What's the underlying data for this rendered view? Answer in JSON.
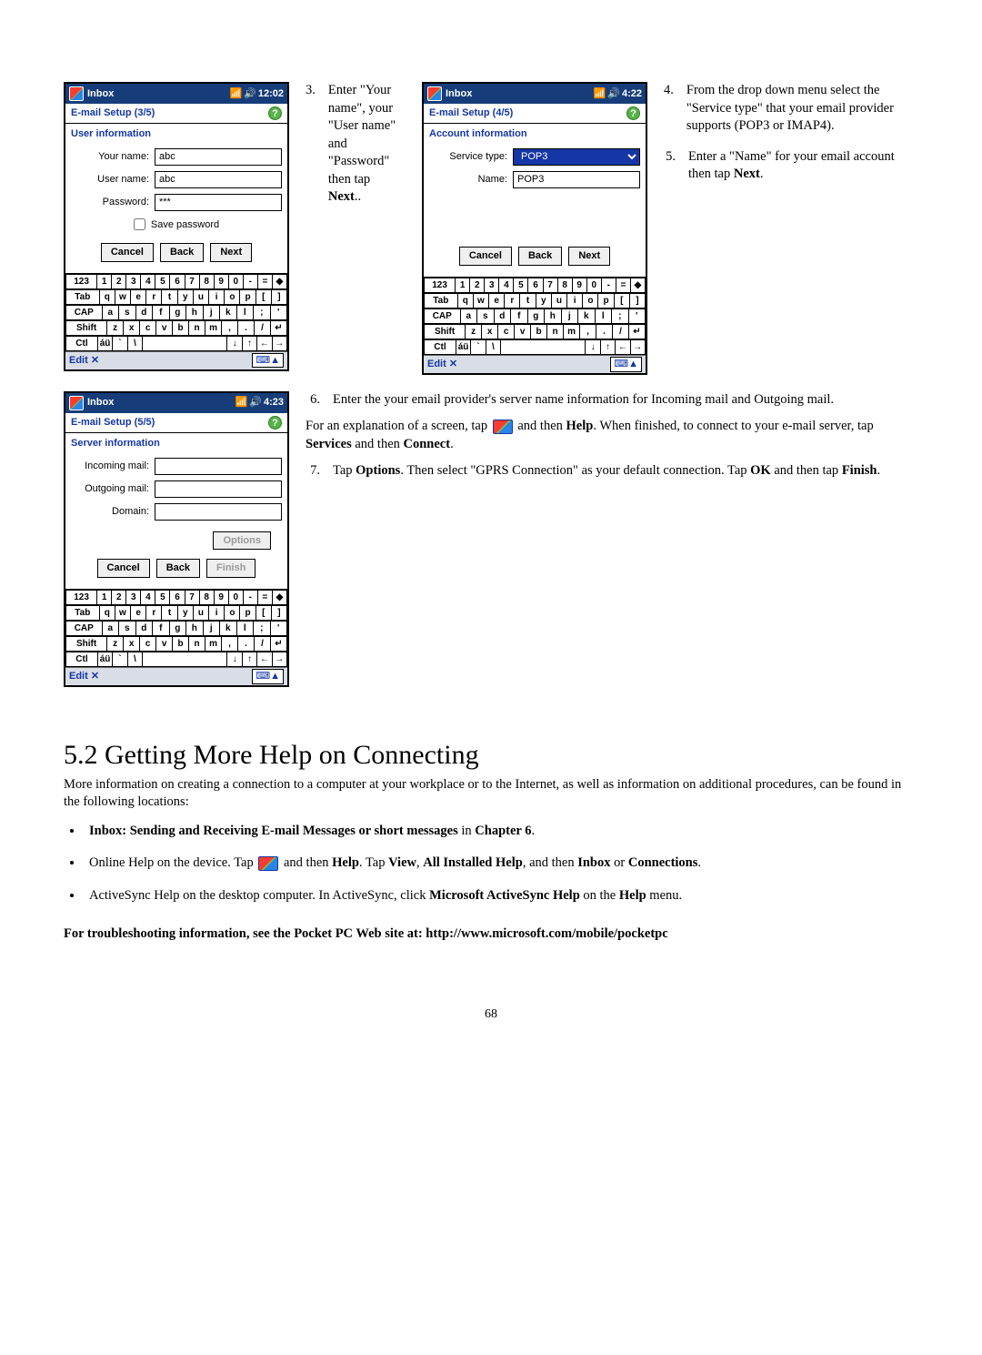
{
  "shot1": {
    "title": "Inbox",
    "time": "12:02",
    "step": "E-mail Setup (3/5)",
    "section": "User information",
    "yourname_lbl": "Your name:",
    "yourname_val": "abc",
    "username_lbl": "User name:",
    "username_val": "abc",
    "password_lbl": "Password:",
    "password_val": "***",
    "save_pw": "Save password",
    "cancel": "Cancel",
    "back": "Back",
    "next": "Next",
    "edit": "Edit ✕"
  },
  "shot2": {
    "title": "Inbox",
    "time": "4:22",
    "step": "E-mail Setup (4/5)",
    "section": "Account information",
    "svc_lbl": "Service type:",
    "svc_val": "POP3",
    "name_lbl": "Name:",
    "name_val": "POP3",
    "cancel": "Cancel",
    "back": "Back",
    "next": "Next",
    "edit": "Edit ✕"
  },
  "shot3": {
    "title": "Inbox",
    "time": "4:23",
    "step": "E-mail Setup (5/5)",
    "section": "Server information",
    "in_lbl": "Incoming mail:",
    "out_lbl": "Outgoing mail:",
    "dom_lbl": "Domain:",
    "options": "Options",
    "cancel": "Cancel",
    "back": "Back",
    "finish": "Finish",
    "edit": "Edit ✕"
  },
  "txt": {
    "s3a": "Enter \"Your name\", your \"User name\" and \"Password\" then tap ",
    "s3b": "Next",
    "s3c": "..",
    "s4a": "From the drop down menu select the \"Service type\" that your email provider supports (POP3 or IMAP4).",
    "s5a": "Enter a \"Name\" for your email account then tap ",
    "s5b": "Next",
    "s5c": ".",
    "s6": "Enter the your email provider's server name information for Incoming mail and Outgoing mail.",
    "expl_a": "For an explanation of a screen, tap ",
    "expl_b": " and then ",
    "expl_help": "Help",
    "expl_c": ". When finished, to connect to your e-mail server, tap ",
    "expl_srv": "Services",
    "expl_d": " and then ",
    "expl_con": "Connect",
    "expl_e": ".",
    "s7a": "Tap ",
    "s7opt": "Options",
    "s7b": ".  Then select \"GPRS Connection\" as your default connection.  Tap ",
    "s7ok": "OK",
    "s7c": " and then tap ",
    "s7fin": "Finish",
    "s7d": "."
  },
  "help": {
    "heading": "5.2 Getting More Help on Connecting",
    "intro": "More information on creating a connection to a computer at your workplace or to the Internet, as well as information on additional procedures, can be found in the following locations:",
    "b1a": "Inbox: Sending and Receiving E-mail Messages or short messages",
    "b1b": " in ",
    "b1c": "Chapter 6",
    "b1d": ".",
    "b2a": "Online Help on the device. Tap ",
    "b2b": " and then ",
    "b2help": "Help",
    "b2c": ". Tap ",
    "b2view": "View",
    "b2d": ", ",
    "b2all": "All Installed Help",
    "b2e": ", and then ",
    "b2in": "Inbox",
    "b2f": " or ",
    "b2con": "Connections",
    "b2g": ".",
    "b3a": "ActiveSync Help on the desktop computer. In ActiveSync, click ",
    "b3m": "Microsoft ActiveSync Help",
    "b3b": " on the ",
    "b3h": "Help",
    "b3c": " menu.",
    "foot": "For troubleshooting information, see the Pocket PC Web site at: http://www.microsoft.com/mobile/pocketpc"
  },
  "page": "68",
  "kbd": {
    "r1": [
      "123",
      "1",
      "2",
      "3",
      "4",
      "5",
      "6",
      "7",
      "8",
      "9",
      "0",
      "-",
      "=",
      "◆"
    ],
    "r2": [
      "Tab",
      "q",
      "w",
      "e",
      "r",
      "t",
      "y",
      "u",
      "i",
      "o",
      "p",
      "[",
      "]"
    ],
    "r3": [
      "CAP",
      "a",
      "s",
      "d",
      "f",
      "g",
      "h",
      "j",
      "k",
      "l",
      ";",
      "'"
    ],
    "r4": [
      "Shift",
      "z",
      "x",
      "c",
      "v",
      "b",
      "n",
      "m",
      ",",
      ".",
      "/",
      "↵"
    ],
    "r5": [
      "Ctl",
      "áü",
      "`",
      "\\",
      "",
      "↓",
      "↑",
      "←",
      "→"
    ]
  }
}
